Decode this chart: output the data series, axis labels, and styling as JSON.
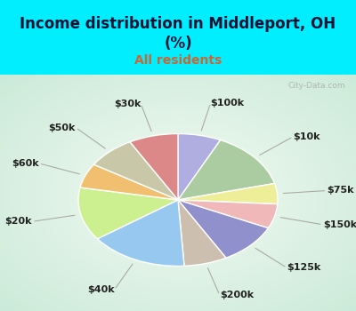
{
  "title": "Income distribution in Middleport, OH\n(%)",
  "subtitle": "All residents",
  "title_color": "#111133",
  "subtitle_color": "#cc6633",
  "bg_cyan": "#00eeff",
  "bg_chart": "#d8f0e0",
  "labels": [
    "$100k",
    "$10k",
    "$75k",
    "$150k",
    "$125k",
    "$200k",
    "$40k",
    "$20k",
    "$60k",
    "$50k",
    "$30k"
  ],
  "values": [
    7,
    14,
    5,
    6,
    10,
    7,
    16,
    13,
    6,
    8,
    8
  ],
  "colors": [
    "#b0aee0",
    "#aacca0",
    "#eeee99",
    "#f0b8b8",
    "#9090cc",
    "#ccbfb0",
    "#96c8f0",
    "#ccf090",
    "#f0c070",
    "#c8c8a8",
    "#dd8888"
  ],
  "wedge_edge_color": "white",
  "label_fontsize": 8,
  "label_color": "#222222",
  "title_fontsize": 12,
  "subtitle_fontsize": 10,
  "watermark": "City-Data.com"
}
